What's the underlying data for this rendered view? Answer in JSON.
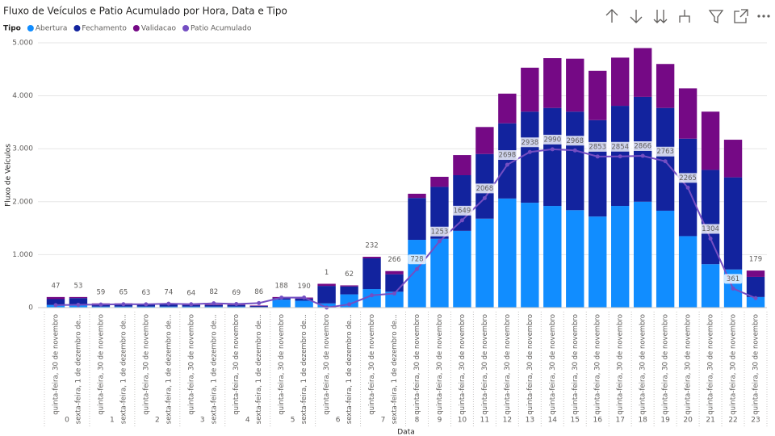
{
  "chart_data": {
    "type": "stacked-bar-line",
    "title": "Fluxo de Veículos e Patio Acumulado por Hora, Data e Tipo",
    "legend_title": "Tipo",
    "xlabel": "Data",
    "ylabel": "Fluxo de Veículos",
    "hour_groups": [
      {
        "label": "0",
        "dates": [
          "quinta-feira, 30 de novembro",
          "sexta-feira, 1 de dezembro de..."
        ]
      },
      {
        "label": "1",
        "dates": [
          "quinta-feira, 30 de novembro",
          "sexta-feira, 1 de dezembro de..."
        ]
      },
      {
        "label": "2",
        "dates": [
          "quinta-feira, 30 de novembro",
          "sexta-feira, 1 de dezembro de..."
        ]
      },
      {
        "label": "3",
        "dates": [
          "quinta-feira, 30 de novembro",
          "sexta-feira, 1 de dezembro de..."
        ]
      },
      {
        "label": "4",
        "dates": [
          "quinta-feira, 30 de novembro",
          "sexta-feira, 1 de dezembro de..."
        ]
      },
      {
        "label": "5",
        "dates": [
          "quinta-feira, 30 de novembro",
          "sexta-feira, 1 de dezembro de..."
        ]
      },
      {
        "label": "6",
        "dates": [
          "quinta-feira, 30 de novembro",
          "sexta-feira, 1 de dezembro de..."
        ]
      },
      {
        "label": "7",
        "dates": [
          "quinta-feira, 30 de novembro",
          "sexta-feira, 1 de dezembro de..."
        ]
      },
      {
        "label": "8",
        "dates": [
          "quinta-feira, 30 de novembro"
        ]
      },
      {
        "label": "9",
        "dates": [
          "quinta-feira, 30 de novembro"
        ]
      },
      {
        "label": "10",
        "dates": [
          "quinta-feira, 30 de novembro"
        ]
      },
      {
        "label": "11",
        "dates": [
          "quinta-feira, 30 de novembro"
        ]
      },
      {
        "label": "12",
        "dates": [
          "quinta-feira, 30 de novembro"
        ]
      },
      {
        "label": "13",
        "dates": [
          "quinta-feira, 30 de novembro"
        ]
      },
      {
        "label": "14",
        "dates": [
          "quinta-feira, 30 de novembro"
        ]
      },
      {
        "label": "15",
        "dates": [
          "quinta-feira, 30 de novembro"
        ]
      },
      {
        "label": "16",
        "dates": [
          "quinta-feira, 30 de novembro"
        ]
      },
      {
        "label": "17",
        "dates": [
          "quinta-feira, 30 de novembro"
        ]
      },
      {
        "label": "18",
        "dates": [
          "quinta-feira, 30 de novembro"
        ]
      },
      {
        "label": "19",
        "dates": [
          "quinta-feira, 30 de novembro"
        ]
      },
      {
        "label": "20",
        "dates": [
          "quinta-feira, 30 de novembro"
        ]
      },
      {
        "label": "21",
        "dates": [
          "quinta-feira, 30 de novembro"
        ]
      },
      {
        "label": "22",
        "dates": [
          "quinta-feira, 30 de novembro"
        ]
      },
      {
        "label": "23",
        "dates": [
          "quinta-feira, 30 de novembro"
        ]
      }
    ],
    "series": [
      {
        "name": "Abertura",
        "color": "#118dff",
        "kind": "bar",
        "values": [
          50,
          60,
          20,
          20,
          20,
          20,
          20,
          20,
          20,
          10,
          150,
          130,
          80,
          250,
          350,
          300,
          1280,
          1300,
          1450,
          1680,
          2060,
          1980,
          1920,
          1840,
          1720,
          1920,
          2000,
          1830,
          1350,
          820,
          720,
          200
        ]
      },
      {
        "name": "Fechamento",
        "color": "#12239e",
        "kind": "bar",
        "values": [
          110,
          120,
          50,
          50,
          40,
          40,
          30,
          30,
          30,
          20,
          30,
          40,
          330,
          150,
          580,
          330,
          790,
          980,
          1050,
          1220,
          1420,
          1720,
          1850,
          1860,
          1820,
          1890,
          1980,
          1940,
          1840,
          1780,
          1740,
          380
        ]
      },
      {
        "name": "Validacao",
        "color": "#750985",
        "kind": "bar",
        "values": [
          40,
          20,
          10,
          10,
          10,
          10,
          10,
          10,
          10,
          10,
          20,
          20,
          40,
          20,
          30,
          60,
          80,
          190,
          380,
          510,
          560,
          830,
          940,
          1000,
          930,
          910,
          920,
          830,
          950,
          1100,
          710,
          120
        ]
      },
      {
        "name": "Patio Acumulado",
        "color": "#744ec2",
        "kind": "line",
        "values": [
          47,
          53,
          59,
          65,
          63,
          74,
          64,
          82,
          69,
          86,
          188,
          190,
          1,
          62,
          232,
          266,
          728,
          1253,
          1649,
          2068,
          2698,
          2938,
          2990,
          2968,
          2853,
          2854,
          2866,
          2763,
          2265,
          1304,
          361,
          179
        ]
      }
    ],
    "ylim": [
      0,
      5000
    ],
    "yticks": [
      0,
      {
        "value": 1000,
        "label": "1.000"
      },
      {
        "value": 2000,
        "label": "2.000"
      },
      {
        "value": 3000,
        "label": "3.000"
      },
      {
        "value": 4000,
        "label": "4.000"
      },
      {
        "value": 5000,
        "label": "5.000"
      }
    ],
    "grid": true
  }
}
